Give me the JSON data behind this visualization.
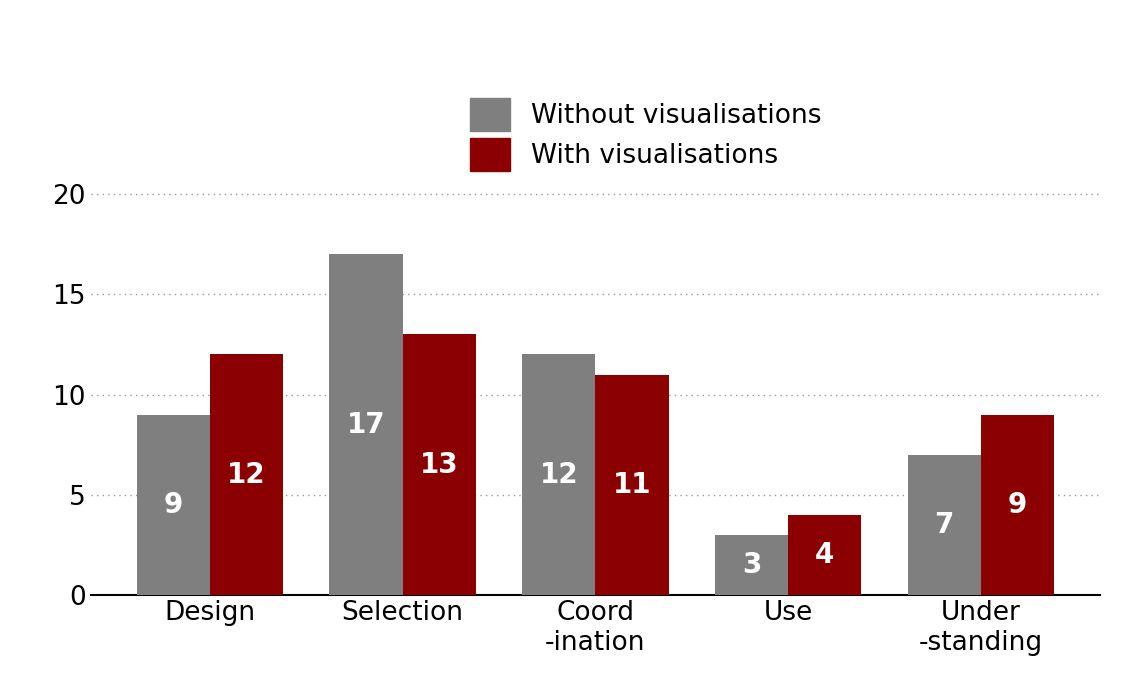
{
  "categories": [
    "Design",
    "Selection",
    "Coord\n-ination",
    "Use",
    "Under\n-standing"
  ],
  "without_vis": [
    9,
    17,
    12,
    3,
    7
  ],
  "with_vis": [
    12,
    13,
    11,
    4,
    9
  ],
  "color_without": "#7f7f7f",
  "color_with": "#8B0000",
  "legend_without": "Without visualisations",
  "legend_with": "With visualisations",
  "ylim": [
    0,
    22
  ],
  "yticks": [
    0,
    5,
    10,
    15,
    20
  ],
  "bar_width": 0.38,
  "figsize": [
    11.34,
    7.0
  ],
  "dpi": 100,
  "tick_fontsize": 19,
  "legend_fontsize": 19,
  "value_fontsize": 20,
  "background_color": "#ffffff"
}
